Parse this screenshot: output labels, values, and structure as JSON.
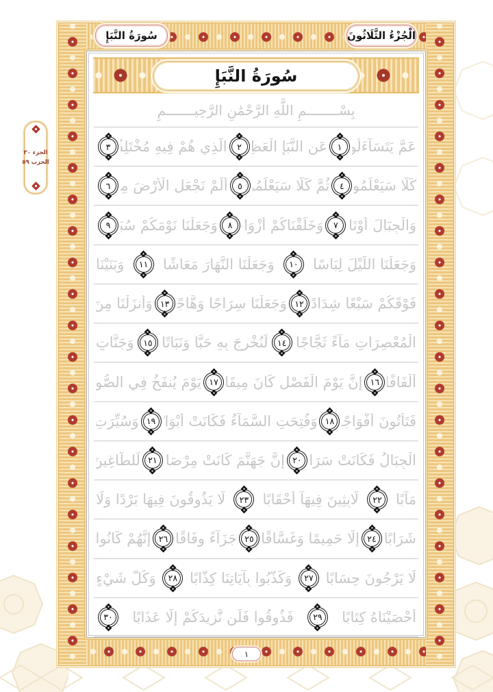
{
  "page": {
    "header": {
      "surah_cartouche": "سُورَةُ النَّبَإِ",
      "juz_cartouche": "الْجُزْءُ الثَّلَاثُونَ"
    },
    "title_banner": "سُورَةُ النَّبَإِ",
    "bismillah": "بِسْــــــــمِ اللَّهِ الرَّحْمَٰنِ الرَّحِيـــــــمِ",
    "margin_marker": {
      "juz_label": "الجزء ٣٠",
      "hizb_label": "الحزب ٥٩"
    },
    "page_number": "١",
    "lines": [
      {
        "segments": [
          {
            "t": "عَمَّ يَتَسَآءَلُونَ"
          },
          {
            "a": "١"
          },
          {
            "t": "عَنِ النَّبَإِ الْعَظِيمِ"
          },
          {
            "a": "٢"
          },
          {
            "t": "الَّذِي هُمْ فِيهِ مُخْتَلِفُونَ"
          },
          {
            "a": "٣"
          }
        ]
      },
      {
        "segments": [
          {
            "t": "كَلَّا سَيَعْلَمُونَ"
          },
          {
            "a": "٤"
          },
          {
            "t": "ثُمَّ كَلَّا سَيَعْلَمُونَ"
          },
          {
            "a": "٥"
          },
          {
            "t": "أَلَمْ نَجْعَلِ الْأَرْضَ مِهَادًا"
          },
          {
            "a": "٦"
          }
        ]
      },
      {
        "segments": [
          {
            "t": "وَالْجِبَالَ أَوْتَادًا"
          },
          {
            "a": "٧"
          },
          {
            "t": "وَخَلَقْنَاكُمْ أَزْوَاجًا"
          },
          {
            "a": "٨"
          },
          {
            "t": "وَجَعَلْنَا نَوْمَكُمْ سُبَاتًا"
          },
          {
            "a": "٩"
          }
        ]
      },
      {
        "segments": [
          {
            "t": "وَجَعَلْنَا اللَّيْلَ لِبَاسًا"
          },
          {
            "a": "١٠"
          },
          {
            "t": "وَجَعَلْنَا النَّهَارَ مَعَاشًا"
          },
          {
            "a": "١١"
          },
          {
            "t": "وَبَنَيْنَا"
          }
        ]
      },
      {
        "segments": [
          {
            "t": "فَوْقَكُمْ سَبْعًا شِدَادًا"
          },
          {
            "a": "١٢"
          },
          {
            "t": "وَجَعَلْنَا سِرَاجًا وَهَّاجًا"
          },
          {
            "a": "١٣"
          },
          {
            "t": "وَأَنزَلْنَا مِنَ"
          }
        ]
      },
      {
        "segments": [
          {
            "t": "الْمُعْصِرَاتِ مَآءً ثَجَّاجًا"
          },
          {
            "a": "١٤"
          },
          {
            "t": "لِّنُخْرِجَ بِهِ حَبًّا وَنَبَاتًا"
          },
          {
            "a": "١٥"
          },
          {
            "t": "وَجَنَّاتٍ"
          }
        ]
      },
      {
        "segments": [
          {
            "t": "أَلْفَافًا"
          },
          {
            "a": "١٦"
          },
          {
            "t": "إِنَّ يَوْمَ الْفَصْلِ كَانَ مِيقَاتًا"
          },
          {
            "a": "١٧"
          },
          {
            "t": "يَوْمَ يُنفَخُ فِي الصُّورِ"
          }
        ]
      },
      {
        "segments": [
          {
            "t": "فَتَأْتُونَ أَفْوَاجًا"
          },
          {
            "a": "١٨"
          },
          {
            "t": "وَفُتِحَتِ السَّمَآءُ فَكَانَتْ أَبْوَابًا"
          },
          {
            "a": "١٩"
          },
          {
            "t": "وَسُيِّرَتِ"
          }
        ]
      },
      {
        "segments": [
          {
            "t": "الْجِبَالُ فَكَانَتْ سَرَابًا"
          },
          {
            "a": "٢٠"
          },
          {
            "t": "إِنَّ جَهَنَّمَ كَانَتْ مِرْصَادًا"
          },
          {
            "a": "٢١"
          },
          {
            "t": "لِّلطَّاغِينَ"
          }
        ]
      },
      {
        "segments": [
          {
            "t": "مَآبًا"
          },
          {
            "a": "٢٢"
          },
          {
            "t": "لَّابِثِينَ فِيهَآ أَحْقَابًا"
          },
          {
            "a": "٢٣"
          },
          {
            "t": "لَّا يَذُوقُونَ فِيهَا بَرْدًا وَلَا"
          }
        ]
      },
      {
        "segments": [
          {
            "t": "شَرَابًا"
          },
          {
            "a": "٢٤"
          },
          {
            "t": "إِلَّا حَمِيمًا وَغَسَّاقًا"
          },
          {
            "a": "٢٥"
          },
          {
            "t": "جَزَآءً وِفَاقًا"
          },
          {
            "a": "٢٦"
          },
          {
            "t": "إِنَّهُمْ كَانُوا"
          }
        ]
      },
      {
        "segments": [
          {
            "t": "لَا يَرْجُونَ حِسَابًا"
          },
          {
            "a": "٢٧"
          },
          {
            "t": "وَكَذَّبُوا بِآيَاتِنَا كِذَّابًا"
          },
          {
            "a": "٢٨"
          },
          {
            "t": "وَكُلَّ شَيْءٍ"
          }
        ]
      },
      {
        "segments": [
          {
            "t": "أَحْصَيْنَاهُ كِتَابًا"
          },
          {
            "a": "٢٩"
          },
          {
            "t": "فَذُوقُوا فَلَن نَّزِيدَكُمْ إِلَّا عَذَابًا"
          },
          {
            "a": "٣٠"
          }
        ]
      }
    ],
    "colors": {
      "frame_gold": "#edc67f",
      "ornament_red": "#b03a2e",
      "tracing_text_gray": "#c7c7c7",
      "ink_black": "#1a1a1a",
      "cartouche_border_pink": "#cf8484",
      "marker_text_red": "#93402c"
    }
  }
}
